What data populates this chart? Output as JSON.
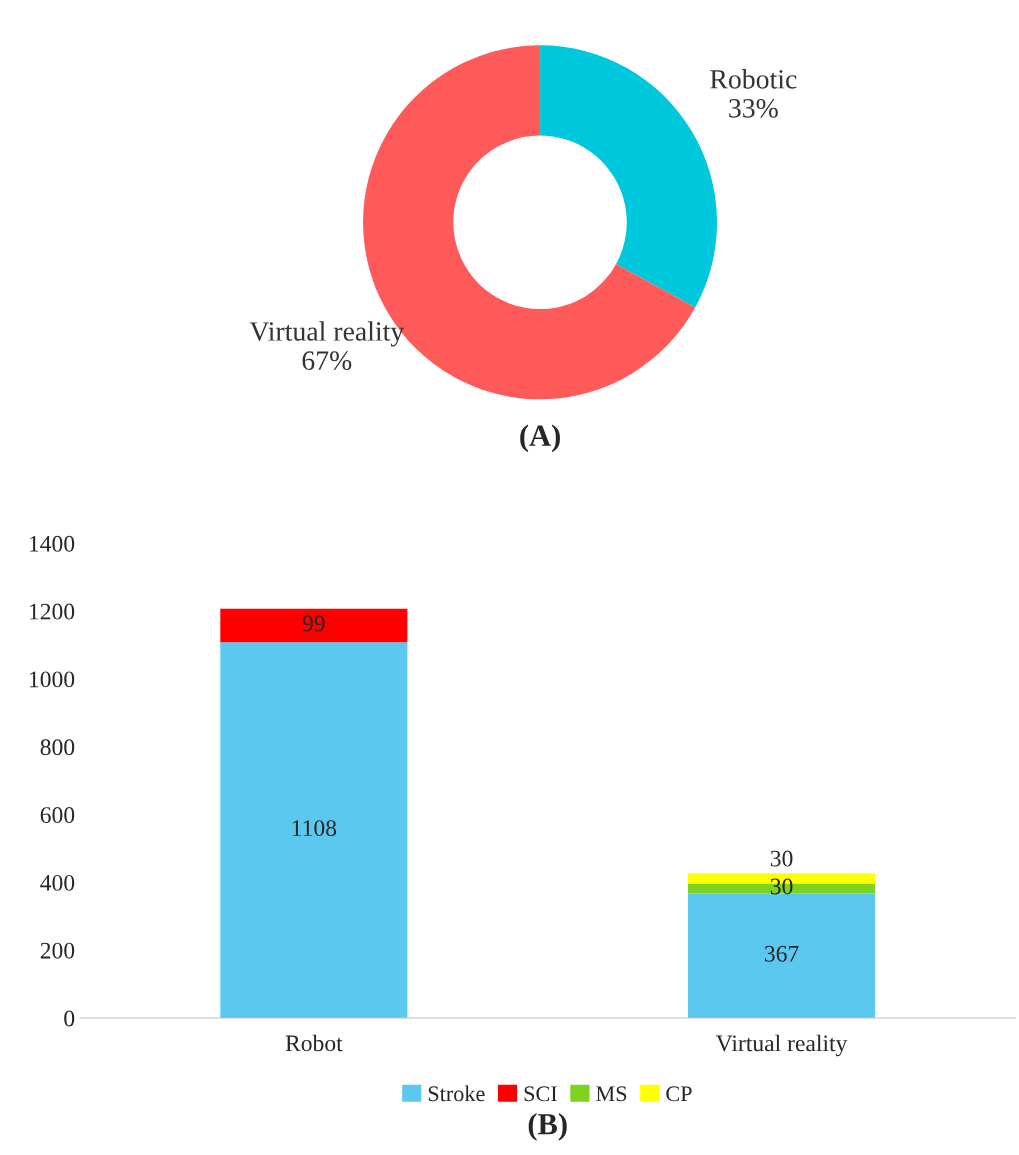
{
  "chart_data": [
    {
      "type": "donut",
      "title": "(A)",
      "categories": [
        "Robotic",
        "Virtual reality"
      ],
      "values": [
        33,
        67
      ],
      "value_labels": [
        "33%",
        "67%"
      ],
      "colors": [
        "#00c8dc",
        "#ff5a5a"
      ]
    },
    {
      "type": "bar",
      "title": "(B)",
      "stacked": true,
      "categories": [
        "Robot",
        "Virtual reality"
      ],
      "series": [
        {
          "name": "Stroke",
          "color": "#5bc8f0",
          "values": [
            1108,
            367
          ]
        },
        {
          "name": "SCI",
          "color": "#ff0000",
          "values": [
            99,
            null
          ]
        },
        {
          "name": "MS",
          "color": "#7ed321",
          "values": [
            null,
            30
          ]
        },
        {
          "name": "CP",
          "color": "#ffff00",
          "values": [
            null,
            30
          ]
        }
      ],
      "ylim": [
        0,
        1400
      ],
      "yticks": [
        0,
        200,
        400,
        600,
        800,
        1000,
        1200,
        1400
      ],
      "data_labels": true,
      "legend": "bottom",
      "grid": false
    }
  ]
}
